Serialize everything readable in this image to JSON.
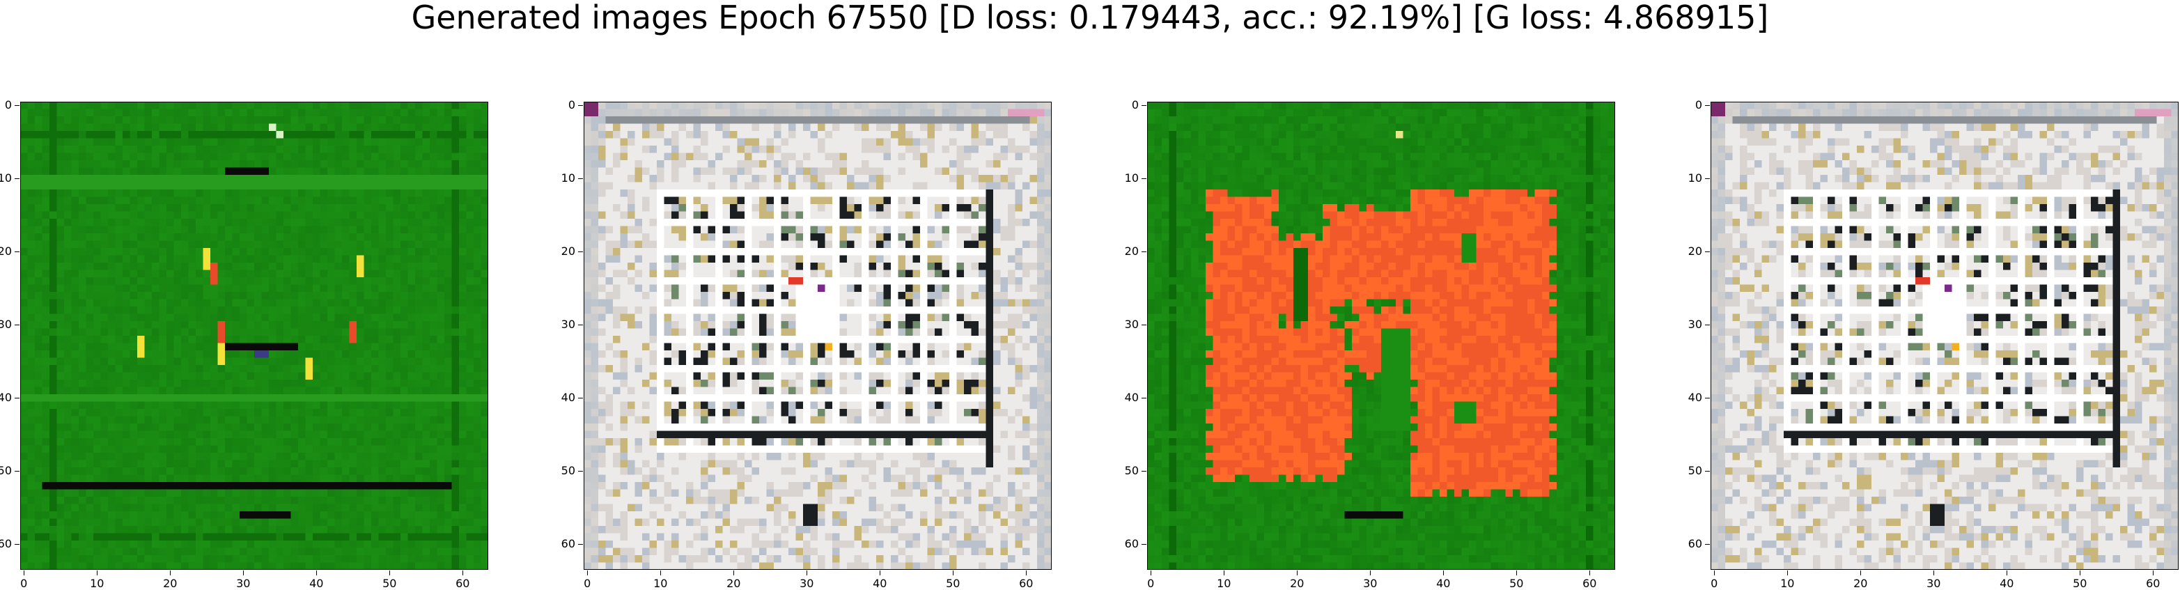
{
  "figure": {
    "title": "Generated images Epoch 67550 [D loss: 0.179443, acc.: 92.19%] [G loss: 4.868915]"
  },
  "axes": {
    "x_ticks": [
      "0",
      "10",
      "20",
      "30",
      "40",
      "50",
      "60"
    ],
    "y_ticks": [
      "0",
      "10",
      "20",
      "30",
      "40",
      "50",
      "60"
    ]
  },
  "panels": [
    {
      "palette": "green",
      "colors": [
        "#1b8f14",
        "#0f6f0a",
        "#35a82a",
        "#0a0a0a",
        "#f2e23a",
        "#e84a2a"
      ]
    },
    {
      "palette": "white-grid",
      "colors": [
        "#ecebea",
        "#d9d4cf",
        "#b9c2cc",
        "#1c1f22",
        "#c8b67a",
        "#ffffff"
      ]
    },
    {
      "palette": "orange-on-green",
      "colors": [
        "#1b8f14",
        "#0c6a08",
        "#ff6a2a",
        "#f1592b",
        "#0a0a0a"
      ]
    },
    {
      "palette": "white-grid",
      "colors": [
        "#ecebea",
        "#d9d4cf",
        "#b9c2cc",
        "#1c1f22",
        "#c8b67a",
        "#ffffff"
      ]
    }
  ]
}
